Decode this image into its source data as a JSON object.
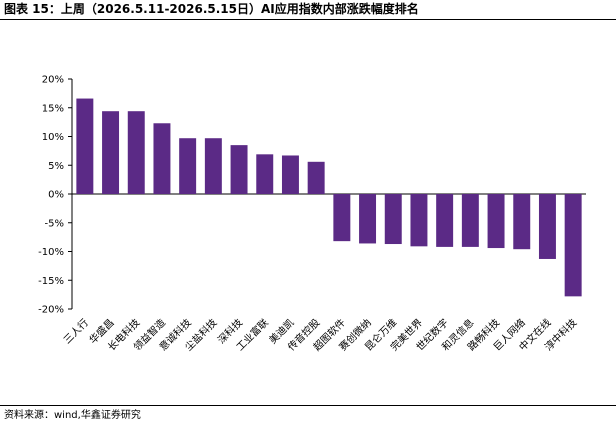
{
  "figure": {
    "title": "图表 15：上周（2026.5.11-2026.5.15日）AI应用指数内部涨跌幅度排名",
    "source": "资料来源：wind,华鑫证券研究"
  },
  "chart_data": {
    "type": "bar",
    "title": "",
    "xlabel": "",
    "ylabel": "",
    "ylim": [
      -20,
      20
    ],
    "yticks": [
      -20,
      -15,
      -10,
      -5,
      0,
      5,
      10,
      15,
      20
    ],
    "ytick_labels": [
      "-20%",
      "-15%",
      "-10%",
      "-5%",
      "0%",
      "5%",
      "10%",
      "15%",
      "20%"
    ],
    "grid": false,
    "bar_color": "#5b2a86",
    "categories": [
      "三人行",
      "华盛昌",
      "长电科技",
      "领益智造",
      "意诚科技",
      "尘盐科技",
      "深科技",
      "工业富联",
      "美迪凯",
      "传音控股",
      "超图软件",
      "赛创微纳",
      "昆仑万维",
      "完美世界",
      "世纪数字",
      "和灵信息",
      "路畅科技",
      "巨人网络",
      "中文在线",
      "淳中科技"
    ],
    "values": [
      16.6,
      14.4,
      14.4,
      12.3,
      9.7,
      9.7,
      8.5,
      6.9,
      6.7,
      5.6,
      -8.2,
      -8.6,
      -8.7,
      -9.1,
      -9.2,
      -9.2,
      -9.4,
      -9.6,
      -11.3,
      -17.8
    ]
  }
}
